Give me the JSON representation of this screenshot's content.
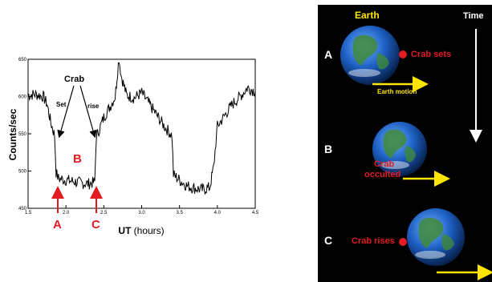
{
  "chart_data": {
    "type": "line",
    "xlabel_bold": "UT",
    "xlabel_rest": " (hours)",
    "ylabel": "Counts/sec",
    "xlim": [
      1.5,
      4.5
    ],
    "ylim": [
      450,
      650
    ],
    "xticks": [
      "1.5",
      "2.0",
      "2.5",
      "3.0",
      "3.5",
      "4.0",
      "4.5"
    ],
    "yticks": [
      "450",
      "500",
      "550",
      "600",
      "650"
    ],
    "grid": false,
    "series": [
      {
        "x": [
          1.5,
          1.6,
          1.7,
          1.75,
          1.8,
          1.85,
          1.87,
          1.9,
          2.0,
          2.1,
          2.2,
          2.3,
          2.38,
          2.4,
          2.5,
          2.6,
          2.65,
          2.7,
          2.73,
          2.8,
          2.9,
          3.0,
          3.1,
          3.2,
          3.3,
          3.4,
          3.42,
          3.5,
          3.6,
          3.7,
          3.8,
          3.9,
          3.95,
          4.0,
          4.1,
          4.2,
          4.3,
          4.4,
          4.5
        ],
        "y": [
          602,
          603,
          600,
          590,
          565,
          548,
          498,
          490,
          488,
          486,
          484,
          483,
          485,
          545,
          572,
          590,
          600,
          652,
          628,
          602,
          598,
          605,
          590,
          575,
          560,
          548,
          495,
          488,
          480,
          477,
          475,
          478,
          505,
          560,
          575,
          590,
          600,
          612,
          607
        ]
      }
    ],
    "annotations": {
      "crab": "Crab",
      "set": "Set",
      "rise": "rise",
      "marker_a": "A",
      "marker_b": "B",
      "marker_c": "C"
    },
    "colors": {
      "annotation_red": "#e31b23",
      "line": "#000000"
    }
  },
  "panel": {
    "earth_title": "Earth",
    "time_label": "Time",
    "row_a": "A",
    "row_b": "B",
    "row_c": "C",
    "crab_sets": "Crab sets",
    "earth_motion": "Earth motion",
    "crab_occulted_line1": "Crab",
    "crab_occulted_line2": "occulted",
    "crab_rises": "Crab rises",
    "colors": {
      "background": "#000000",
      "yellow": "#ffe600",
      "red": "#e31b23",
      "white": "#ffffff"
    }
  }
}
